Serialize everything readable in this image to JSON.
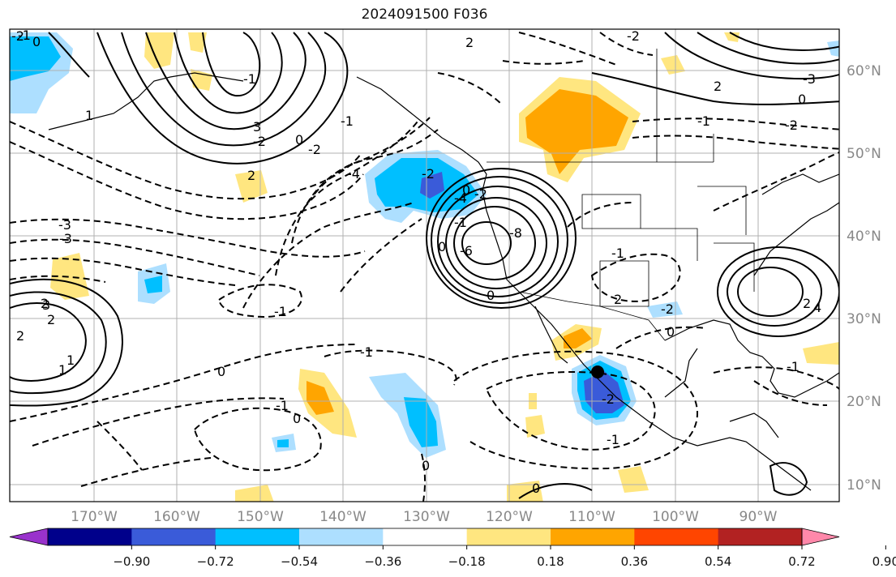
{
  "title": "2024091500 F036",
  "lat_labels": [
    "60°N",
    "50°N",
    "40°N",
    "30°N",
    "20°N",
    "10°N"
  ],
  "lon_labels": [
    "170°W",
    "160°W",
    "150°W",
    "140°W",
    "130°W",
    "120°W",
    "110°W",
    "100°W",
    "90°W"
  ],
  "colorbar": {
    "colors": [
      "#9932CC",
      "#00008B",
      "#3A5BD9",
      "#00BFFF",
      "#ADDFFF",
      "#FFFFFF",
      "#FFE680",
      "#FFA500",
      "#FF4500",
      "#B22222",
      "#FF88AA"
    ],
    "labels": [
      "−0.90",
      "−0.72",
      "−0.54",
      "−0.36",
      "−0.18",
      "0.18",
      "0.36",
      "0.54",
      "0.72",
      "0.90"
    ]
  },
  "contour_labels": [
    "0",
    "-1",
    "1",
    "-1",
    "2",
    "-2",
    "-3",
    "-4",
    "0",
    "2",
    "3",
    "-1",
    "0",
    "-2",
    "2",
    "-3",
    "-2",
    "-1",
    "0",
    "-1",
    "-2",
    "0",
    "-1",
    "0",
    "0",
    "-2",
    "-1",
    "-6",
    "-8",
    "-4",
    "-1",
    "2",
    "-2",
    "0",
    "-1",
    "1",
    "2",
    "3",
    "2",
    "1",
    "4",
    "-2",
    "2",
    "-1",
    "0",
    "-2",
    "-3",
    "2",
    "-1",
    "0",
    "-2",
    "0"
  ],
  "marker": "storm-center"
}
